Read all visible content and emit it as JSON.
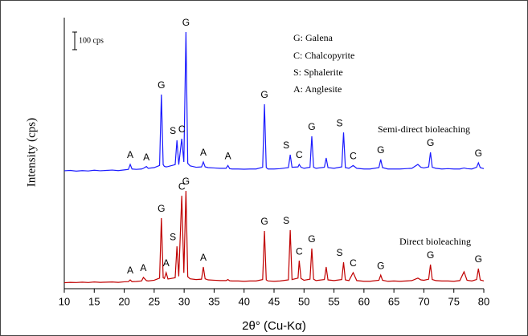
{
  "chart_data": {
    "type": "line",
    "ylabel": "Intensity (cps)",
    "xlabel": "2θ° (Cu-Kα)",
    "xlim": [
      10,
      80
    ],
    "xticks": [
      10,
      15,
      20,
      25,
      30,
      35,
      40,
      45,
      50,
      55,
      60,
      65,
      70,
      75,
      80
    ],
    "ylim": [
      0,
      1540
    ],
    "scale_bar": {
      "value": 100,
      "label": "100 cps"
    },
    "notes": [
      "G: Galena",
      "C: Chalcopyrite",
      "S: Sphalerite",
      "A: Anglesite"
    ],
    "x": [
      10,
      11,
      12,
      13,
      14,
      15,
      16,
      17,
      18,
      19,
      20,
      20.7,
      21,
      21.3,
      22,
      22.9,
      23.2,
      23.7,
      24,
      25,
      25.9,
      26.2,
      26.5,
      26.7,
      27,
      27.3,
      28.5,
      28.8,
      29.1,
      29.6,
      29.95,
      30.3,
      30.6,
      31,
      32,
      32.9,
      33.2,
      33.5,
      34,
      35,
      36,
      37,
      37.3,
      37.6,
      38,
      39,
      40,
      41,
      42,
      43.1,
      43.4,
      43.7,
      44,
      45,
      46,
      47.4,
      47.7,
      48,
      49,
      49.2,
      49.5,
      50,
      51,
      51.3,
      51.6,
      52,
      53.4,
      53.7,
      54,
      55,
      56.3,
      56.6,
      56.9,
      57.5,
      58.2,
      58.8,
      60,
      61,
      62.5,
      62.8,
      63.1,
      64,
      65,
      66,
      67,
      68,
      69,
      69.5,
      70,
      70.8,
      71.1,
      71.4,
      72,
      73,
      74,
      75,
      76,
      76.7,
      77.2,
      78,
      78.8,
      79.1,
      79.4,
      80
    ],
    "series": [
      {
        "name": "Semi-direct bioleaching",
        "color": "#1a1aff",
        "values": [
          670,
          672,
          668,
          671,
          669,
          673,
          670,
          672,
          674,
          671,
          675,
          678,
          706,
          680,
          678,
          680,
          684,
          694,
          684,
          688,
          700,
          1103,
          705,
          695,
          692,
          694,
          705,
          843,
          705,
          852,
          720,
          1458,
          712,
          698,
          690,
          692,
          720,
          692,
          688,
          686,
          684,
          684,
          700,
          682,
          680,
          680,
          679,
          680,
          680,
          690,
          1048,
          688,
          680,
          680,
          682,
          688,
          761,
          690,
          692,
          706,
          690,
          684,
          690,
          866,
          690,
          684,
          690,
          743,
          688,
          684,
          692,
          888,
          688,
          684,
          700,
          684,
          680,
          680,
          688,
          734,
          688,
          680,
          680,
          680,
          682,
          684,
          706,
          690,
          686,
          692,
          775,
          690,
          684,
          680,
          682,
          680,
          680,
          686,
          682,
          680,
          690,
          715,
          688,
          682
        ],
        "peak_labels": [
          null,
          null,
          null,
          null,
          null,
          null,
          null,
          null,
          null,
          null,
          null,
          null,
          "A",
          null,
          null,
          null,
          null,
          "A",
          null,
          null,
          null,
          "G",
          null,
          null,
          null,
          null,
          null,
          "S",
          null,
          "C",
          null,
          "G",
          null,
          null,
          null,
          null,
          "A",
          null,
          null,
          null,
          null,
          null,
          "A",
          null,
          null,
          null,
          null,
          null,
          null,
          null,
          "G",
          null,
          null,
          null,
          null,
          null,
          "S",
          null,
          null,
          "C",
          null,
          null,
          null,
          "G",
          null,
          null,
          null,
          null,
          null,
          null,
          null,
          "S",
          null,
          null,
          "C",
          null,
          null,
          null,
          null,
          "G",
          null,
          null,
          null,
          null,
          null,
          null,
          null,
          null,
          null,
          null,
          "G",
          null,
          null,
          null,
          null,
          null,
          null,
          null,
          null,
          null,
          null,
          "G",
          null,
          null
        ]
      },
      {
        "name": "Direct bioleaching",
        "color": "#c00000",
        "values": [
          34,
          36,
          35,
          37,
          35,
          38,
          36,
          37,
          38,
          36,
          39,
          40,
          50,
          40,
          41,
          44,
          64,
          46,
          44,
          48,
          60,
          401,
          62,
          58,
          91,
          55,
          62,
          241,
          70,
          528,
          90,
          556,
          68,
          56,
          52,
          54,
          123,
          56,
          50,
          48,
          46,
          46,
          52,
          45,
          44,
          44,
          42,
          44,
          44,
          52,
          328,
          50,
          44,
          42,
          44,
          50,
          333,
          52,
          60,
          159,
          58,
          48,
          54,
          228,
          54,
          46,
          52,
          123,
          50,
          46,
          52,
          150,
          50,
          46,
          91,
          46,
          42,
          42,
          48,
          77,
          48,
          42,
          44,
          42,
          44,
          46,
          60,
          50,
          48,
          54,
          137,
          52,
          46,
          44,
          44,
          42,
          46,
          96,
          48,
          44,
          52,
          114,
          50,
          44
        ],
        "peak_labels": [
          null,
          null,
          null,
          null,
          null,
          null,
          null,
          null,
          null,
          null,
          null,
          null,
          "A",
          null,
          null,
          null,
          "A",
          null,
          null,
          null,
          null,
          "G",
          null,
          null,
          "A",
          null,
          null,
          "S",
          null,
          "C",
          null,
          "G",
          null,
          null,
          null,
          null,
          "A",
          null,
          null,
          null,
          null,
          null,
          null,
          null,
          null,
          null,
          null,
          null,
          null,
          null,
          "G",
          null,
          null,
          null,
          null,
          null,
          "S",
          null,
          null,
          "C",
          null,
          null,
          null,
          "G",
          null,
          null,
          null,
          null,
          null,
          null,
          null,
          "S",
          null,
          null,
          "C",
          null,
          null,
          null,
          null,
          "G",
          null,
          null,
          null,
          null,
          null,
          null,
          null,
          null,
          null,
          null,
          "G",
          null,
          null,
          null,
          null,
          null,
          null,
          null,
          null,
          null,
          null,
          "G",
          null,
          null
        ]
      }
    ]
  }
}
